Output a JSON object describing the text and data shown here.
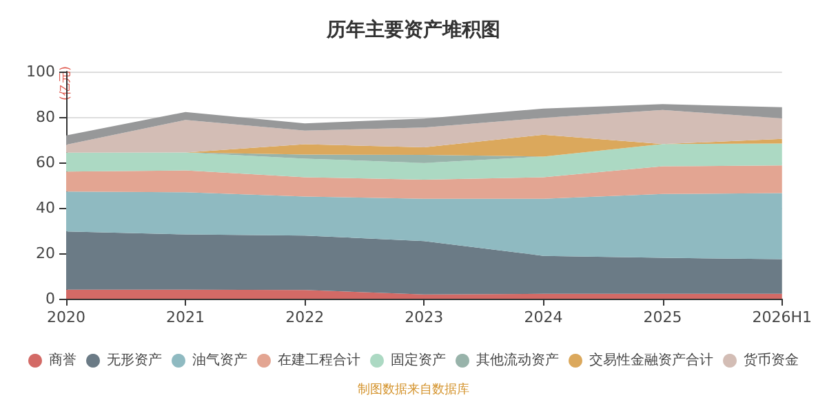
{
  "chart_data": {
    "type": "area",
    "stacked": true,
    "title": "历年主要资产堆积图",
    "ylabel": "(亿元)",
    "categories": [
      "2020",
      "2021",
      "2022",
      "2023",
      "2024",
      "2025",
      "2026H1"
    ],
    "series": [
      {
        "name": "商誉",
        "color": "#d36a66",
        "values": [
          4,
          4,
          3.9,
          1.9,
          2.2,
          2.2,
          2.2
        ]
      },
      {
        "name": "无形资产",
        "color": "#6b7b86",
        "values": [
          25.6,
          24.3,
          23.9,
          23.5,
          16.7,
          15.8,
          15.2
        ]
      },
      {
        "name": "油气资产",
        "color": "#8fbac1",
        "values": [
          17.6,
          18.6,
          17.2,
          18.6,
          25.1,
          28.1,
          29.1
        ]
      },
      {
        "name": "在建工程合计",
        "color": "#e3a592",
        "values": [
          8.8,
          9.6,
          8.5,
          8.4,
          9.5,
          12.2,
          12.2
        ]
      },
      {
        "name": "固定资产",
        "color": "#acd9c3",
        "values": [
          8.3,
          7.9,
          8.2,
          7.4,
          9.1,
          9.8,
          9.6
        ]
      },
      {
        "name": "其他流动资产",
        "color": "#98b3aa",
        "values": [
          0,
          0,
          1.8,
          3.5,
          0,
          0,
          0
        ]
      },
      {
        "name": "交易性金融资产合计",
        "color": "#dba85c",
        "values": [
          0,
          0,
          4.5,
          3.4,
          9.6,
          0,
          2.1
        ]
      },
      {
        "name": "货币资金",
        "color": "#d3bdb5",
        "values": [
          3.5,
          14.3,
          6,
          8.7,
          7.4,
          15,
          9
        ]
      },
      {
        "color": "#979899",
        "values": [
          4.1,
          3.5,
          3.2,
          3.9,
          4.1,
          2.6,
          4.9
        ]
      }
    ],
    "ylim": [
      0,
      100
    ],
    "yticks": [
      0,
      20,
      40,
      60,
      80,
      100
    ],
    "grid": "y",
    "legend": "bottom",
    "annotations": [
      "制图数据来自数据库"
    ]
  }
}
